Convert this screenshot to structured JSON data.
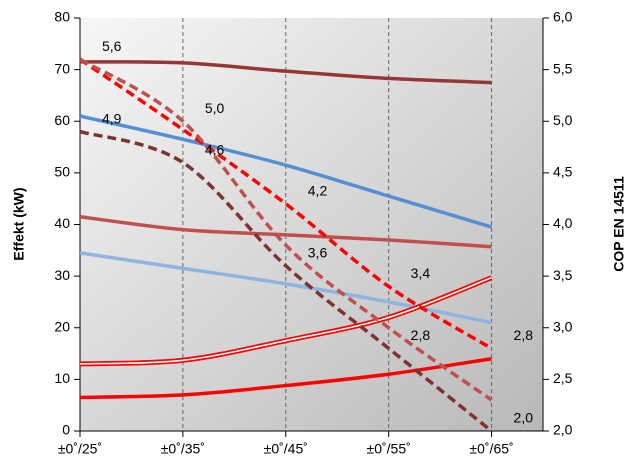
{
  "chart_data": {
    "type": "line",
    "y_label": "Effekt  (kW)",
    "y2_label": "COP EN 14511",
    "x": [
      25,
      35,
      45,
      55,
      65
    ],
    "xlim": [
      25,
      70
    ],
    "xticks": [
      {
        "value": 25,
        "label": "±0˚/25˚"
      },
      {
        "value": 35,
        "label": "±0˚/35˚"
      },
      {
        "value": 45,
        "label": "±0˚/45˚"
      },
      {
        "value": 55,
        "label": "±0˚/55˚"
      },
      {
        "value": 65,
        "label": "±0˚/65˚"
      }
    ],
    "ylim": [
      0,
      80
    ],
    "yticks": [
      0,
      10,
      20,
      30,
      40,
      50,
      60,
      70,
      80
    ],
    "y2lim": [
      2,
      6
    ],
    "y2ticks": [
      {
        "value": 2,
        "label": "2,0"
      },
      {
        "value": 2.5,
        "label": "2,5"
      },
      {
        "value": 3,
        "label": "3,0"
      },
      {
        "value": 3.5,
        "label": "3,5"
      },
      {
        "value": 4,
        "label": "4,0"
      },
      {
        "value": 4.5,
        "label": "4,5"
      },
      {
        "value": 5,
        "label": "5,0"
      },
      {
        "value": 5.5,
        "label": "5,5"
      },
      {
        "value": 6,
        "label": "6,0"
      }
    ],
    "x_grid": true,
    "series": [
      {
        "color": "#953735",
        "style": "solid",
        "values": [
          71.5,
          71.3,
          69.7,
          68.3,
          67.5
        ]
      },
      {
        "color": "#558ed5",
        "style": "solid",
        "values": [
          61,
          56.5,
          51.5,
          45.5,
          39.5
        ]
      },
      {
        "color": "#c0504d",
        "style": "solid",
        "values": [
          41.5,
          39,
          38,
          37,
          35.7
        ]
      },
      {
        "color": "#8eb4e3",
        "style": "solid",
        "values": [
          34.5,
          31.5,
          28.5,
          25,
          21
        ]
      },
      {
        "color": "#ff0000",
        "style": "double",
        "values": [
          13,
          13.7,
          17.5,
          22,
          29.7
        ]
      },
      {
        "color": "#ff0000",
        "style": "solid",
        "values": [
          6.5,
          7,
          8.8,
          11,
          14
        ]
      },
      {
        "color": "#ff0000",
        "style": "dashed",
        "axis": "y2",
        "values": [
          5.6,
          4.92,
          4.2,
          3.4,
          2.8
        ],
        "value_labels": [
          "5,6",
          null,
          "4,2",
          "3,4",
          "2,8"
        ]
      },
      {
        "color": "#c0504d",
        "style": "dashed",
        "axis": "y2",
        "values": [
          5.6,
          5.0,
          3.8,
          3.0,
          2.3
        ],
        "value_labels": [
          null,
          "5,0",
          null,
          null,
          null
        ]
      },
      {
        "color": "#7f3230",
        "style": "dashed",
        "axis": "y2",
        "values": [
          4.9,
          4.6,
          3.6,
          2.8,
          2.0
        ],
        "value_labels": [
          "4,9",
          "4,6",
          "3,6",
          "2,8",
          "2,0"
        ]
      }
    ]
  }
}
